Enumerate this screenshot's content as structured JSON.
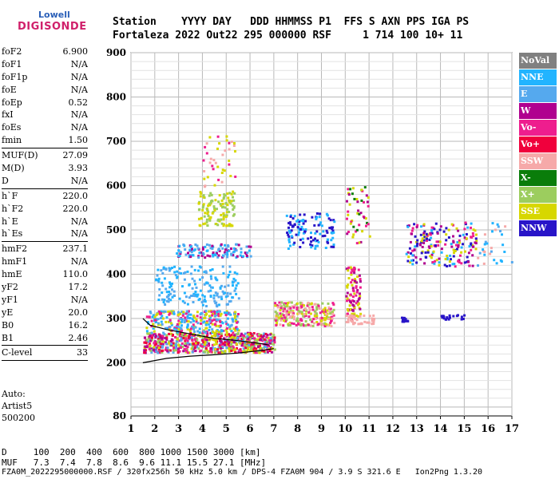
{
  "logo": {
    "top": "Lowell",
    "bottom": "DIGISONDE"
  },
  "header": {
    "line1": "Station    YYYY DAY   DDD HHMMSS P1  FFS S AXN PPS IGA PS",
    "line2": "Fortaleza 2022 Out22 295 000000 RSF     1 714 100 10+ 11"
  },
  "params": [
    [
      {
        "n": "foF2",
        "v": "6.900"
      },
      {
        "n": "foF1",
        "v": "N/A"
      },
      {
        "n": "foF1p",
        "v": "N/A"
      },
      {
        "n": "foE",
        "v": "N/A"
      },
      {
        "n": "foEp",
        "v": "0.52"
      },
      {
        "n": "fxI",
        "v": "N/A"
      },
      {
        "n": "foEs",
        "v": "N/A"
      },
      {
        "n": "fmin",
        "v": "1.50"
      }
    ],
    [
      {
        "n": "MUF(D)",
        "v": "27.09"
      },
      {
        "n": "M(D)",
        "v": "3.93"
      },
      {
        "n": "D",
        "v": "N/A"
      }
    ],
    [
      {
        "n": "h`F",
        "v": "220.0"
      },
      {
        "n": "h`F2",
        "v": "220.0"
      },
      {
        "n": "h`E",
        "v": "N/A"
      },
      {
        "n": "h`Es",
        "v": "N/A"
      }
    ],
    [
      {
        "n": "hmF2",
        "v": "237.1"
      },
      {
        "n": "hmF1",
        "v": "N/A"
      },
      {
        "n": "hmE",
        "v": "110.0"
      },
      {
        "n": "yF2",
        "v": "17.2"
      },
      {
        "n": "yF1",
        "v": "N/A"
      },
      {
        "n": "yE",
        "v": "20.0"
      },
      {
        "n": "B0",
        "v": "16.2"
      },
      {
        "n": "B1",
        "v": "2.46"
      }
    ],
    [
      {
        "n": "C-level",
        "v": "33"
      }
    ]
  ],
  "auto": {
    "l1": "Auto:",
    "l2": "Artist5",
    "l3": "500200"
  },
  "legend": [
    {
      "label": "NoVal",
      "color": "#808080"
    },
    {
      "label": "NNE",
      "color": "#22b4ff"
    },
    {
      "label": "E",
      "color": "#55a9ee"
    },
    {
      "label": "W",
      "color": "#b0008f"
    },
    {
      "label": "Vo-",
      "color": "#ee1e8e"
    },
    {
      "label": "Vo+",
      "color": "#f0003c"
    },
    {
      "label": "SSW",
      "color": "#f6a9a9"
    },
    {
      "label": "X-",
      "color": "#0a7d0a"
    },
    {
      "label": "X+",
      "color": "#9ccd5e"
    },
    {
      "label": "SSE",
      "color": "#d7d700"
    },
    {
      "label": "NNW",
      "color": "#2814c8"
    }
  ],
  "bottom": {
    "l1": "D     100  200  400  600  800 1000 1500 3000 [km]",
    "l2": "MUF   7.3  7.4  7.8  8.6  9.6 11.1 15.5 27.1 [MHz]",
    "l3": "FZA0M_2022295000000.RSF / 320fx256h 50 kHz 5.0 km / DPS-4 FZA0M 904 / 3.9 S 321.6 E   Ion2Png 1.3.20"
  },
  "chart_data": {
    "type": "scatter",
    "title": "",
    "xlabel": "",
    "ylabel": "",
    "xlim": [
      1,
      17
    ],
    "ylim": [
      80,
      900
    ],
    "xticks": [
      1,
      2,
      3,
      4,
      5,
      6,
      7,
      8,
      9,
      10,
      11,
      12,
      13,
      14,
      15,
      16,
      17
    ],
    "yticks": [
      200,
      300,
      400,
      500,
      600,
      700,
      800,
      900
    ],
    "ytick_min_label": 80,
    "grid": true,
    "clusters": [
      {
        "x": [
          1.5,
          7.0
        ],
        "y": [
          225,
          270
        ],
        "colors": [
          "#ee1e8e",
          "#f0003c",
          "#b0008f",
          "#d7d700",
          "#9ccd5e",
          "#55a9ee"
        ],
        "n": 700
      },
      {
        "x": [
          1.6,
          5.5
        ],
        "y": [
          270,
          320
        ],
        "colors": [
          "#55a9ee",
          "#22b4ff",
          "#d7d700",
          "#ee1e8e"
        ],
        "n": 300
      },
      {
        "x": [
          2.0,
          5.5
        ],
        "y": [
          330,
          420
        ],
        "colors": [
          "#55a9ee",
          "#22b4ff"
        ],
        "n": 180
      },
      {
        "x": [
          2.8,
          6.0
        ],
        "y": [
          440,
          470
        ],
        "colors": [
          "#55a9ee",
          "#22b4ff",
          "#b0008f"
        ],
        "n": 120
      },
      {
        "x": [
          3.8,
          5.3
        ],
        "y": [
          510,
          590
        ],
        "colors": [
          "#d7d700",
          "#9ccd5e"
        ],
        "n": 120
      },
      {
        "x": [
          4.0,
          5.5
        ],
        "y": [
          600,
          720
        ],
        "colors": [
          "#d7d700",
          "#f6a9a9",
          "#ee1e8e"
        ],
        "n": 40
      },
      {
        "x": [
          7.0,
          9.5
        ],
        "y": [
          285,
          340
        ],
        "colors": [
          "#d7d700",
          "#9ccd5e",
          "#ee1e8e",
          "#f6a9a9"
        ],
        "n": 260
      },
      {
        "x": [
          7.5,
          9.5
        ],
        "y": [
          460,
          540
        ],
        "colors": [
          "#2814c8",
          "#22b4ff"
        ],
        "n": 120
      },
      {
        "x": [
          10.0,
          10.6
        ],
        "y": [
          300,
          420
        ],
        "colors": [
          "#d7d700",
          "#b0008f",
          "#ee1e8e"
        ],
        "n": 90
      },
      {
        "x": [
          10.0,
          11.0
        ],
        "y": [
          470,
          600
        ],
        "colors": [
          "#0a7d0a",
          "#ee1e8e",
          "#b0008f",
          "#d7d700"
        ],
        "n": 50
      },
      {
        "x": [
          10.0,
          11.2
        ],
        "y": [
          290,
          310
        ],
        "colors": [
          "#f6a9a9"
        ],
        "n": 40
      },
      {
        "x": [
          12.5,
          15.5
        ],
        "y": [
          420,
          520
        ],
        "colors": [
          "#2814c8",
          "#b0008f",
          "#22b4ff",
          "#ee1e8e",
          "#d7d700"
        ],
        "n": 200
      },
      {
        "x": [
          12.3,
          12.6
        ],
        "y": [
          295,
          305
        ],
        "colors": [
          "#2814c8"
        ],
        "n": 12
      },
      {
        "x": [
          14.0,
          15.0
        ],
        "y": [
          300,
          310
        ],
        "colors": [
          "#2814c8"
        ],
        "n": 20
      },
      {
        "x": [
          15.5,
          17.0
        ],
        "y": [
          420,
          520
        ],
        "colors": [
          "#22b4ff",
          "#f6a9a9",
          "#55a9ee"
        ],
        "n": 30
      }
    ],
    "trace_upper": {
      "x": [
        1.5,
        1.8,
        2.5,
        3.5,
        4.5,
        5.5,
        6.5,
        6.8
      ],
      "y": [
        300,
        285,
        275,
        265,
        255,
        250,
        243,
        240
      ]
    },
    "trace_lower": {
      "x": [
        1.5,
        2.5,
        3.5,
        4.5,
        5.5,
        6.5,
        7.0
      ],
      "y": [
        200,
        210,
        215,
        218,
        222,
        228,
        232
      ]
    }
  }
}
